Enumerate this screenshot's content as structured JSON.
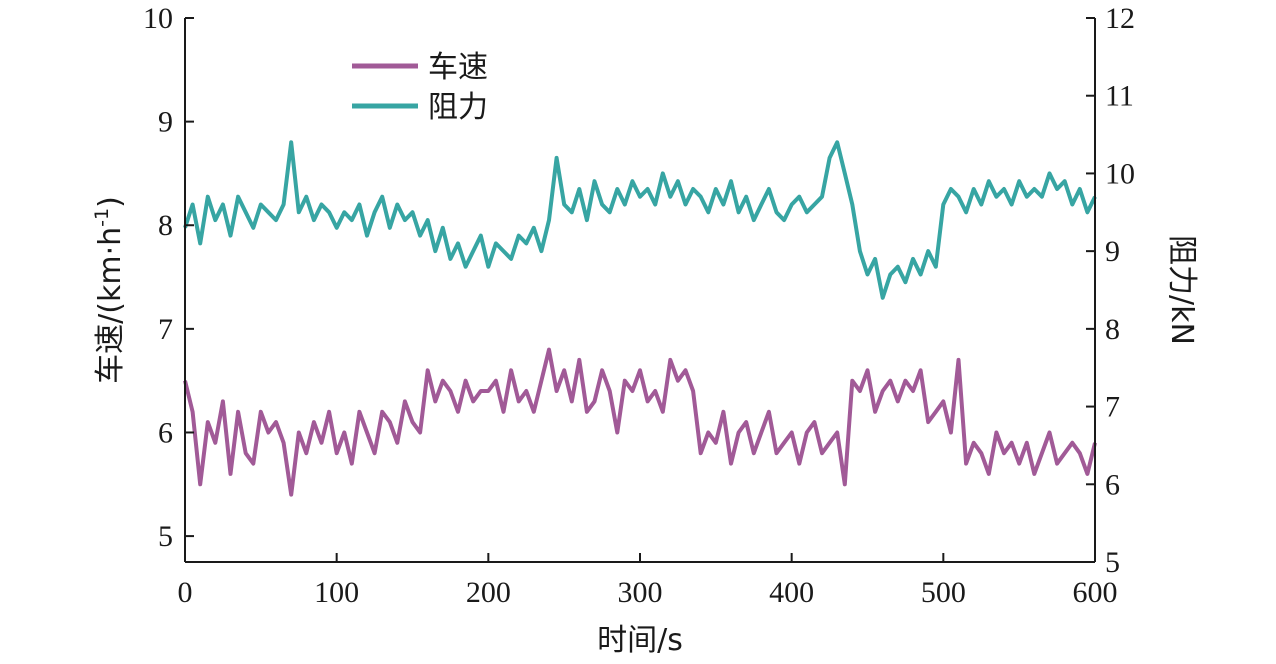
{
  "chart_data": {
    "type": "line",
    "xlabel": "时间/s",
    "ylabel_left": "车速/(km·h",
    "ylabel_left_sup": "-1",
    "ylabel_left_close": ")",
    "ylabel_right": "阻力/kN",
    "xlim": [
      0,
      600
    ],
    "ylim_left": [
      4.75,
      10
    ],
    "ylim_right": [
      5,
      12
    ],
    "x_ticks": [
      0,
      100,
      200,
      300,
      400,
      500,
      600
    ],
    "y_left_ticks": [
      5,
      6,
      7,
      8,
      9,
      10
    ],
    "y_right_ticks": [
      5,
      6,
      7,
      8,
      9,
      10,
      11,
      12
    ],
    "grid": false,
    "legend_position": "top-left",
    "series": [
      {
        "name": "车速",
        "axis": "left",
        "color": "#a15a97",
        "x": [
          0,
          5,
          10,
          15,
          20,
          25,
          30,
          35,
          40,
          45,
          50,
          55,
          60,
          65,
          70,
          75,
          80,
          85,
          90,
          95,
          100,
          105,
          110,
          115,
          120,
          125,
          130,
          135,
          140,
          145,
          150,
          155,
          160,
          165,
          170,
          175,
          180,
          185,
          190,
          195,
          200,
          205,
          210,
          215,
          220,
          225,
          230,
          235,
          240,
          245,
          250,
          255,
          260,
          265,
          270,
          275,
          280,
          285,
          290,
          295,
          300,
          305,
          310,
          315,
          320,
          325,
          330,
          335,
          340,
          345,
          350,
          355,
          360,
          365,
          370,
          375,
          380,
          385,
          390,
          395,
          400,
          405,
          410,
          415,
          420,
          425,
          430,
          435,
          440,
          445,
          450,
          455,
          460,
          465,
          470,
          475,
          480,
          485,
          490,
          495,
          500,
          505,
          510,
          515,
          520,
          525,
          530,
          535,
          540,
          545,
          550,
          555,
          560,
          565,
          570,
          575,
          580,
          585,
          590,
          595,
          600
        ],
        "values": [
          6.5,
          6.2,
          5.5,
          6.1,
          5.9,
          6.3,
          5.6,
          6.2,
          5.8,
          5.7,
          6.2,
          6.0,
          6.1,
          5.9,
          5.4,
          6.0,
          5.8,
          6.1,
          5.9,
          6.2,
          5.8,
          6.0,
          5.7,
          6.2,
          6.0,
          5.8,
          6.2,
          6.1,
          5.9,
          6.3,
          6.1,
          6.0,
          6.6,
          6.3,
          6.5,
          6.4,
          6.2,
          6.5,
          6.3,
          6.4,
          6.4,
          6.5,
          6.2,
          6.6,
          6.3,
          6.4,
          6.2,
          6.5,
          6.8,
          6.4,
          6.6,
          6.3,
          6.7,
          6.2,
          6.3,
          6.6,
          6.4,
          6.0,
          6.5,
          6.4,
          6.6,
          6.3,
          6.4,
          6.2,
          6.7,
          6.5,
          6.6,
          6.4,
          5.8,
          6.0,
          5.9,
          6.2,
          5.7,
          6.0,
          6.1,
          5.8,
          6.0,
          6.2,
          5.8,
          5.9,
          6.0,
          5.7,
          6.0,
          6.1,
          5.8,
          5.9,
          6.0,
          5.5,
          6.5,
          6.4,
          6.6,
          6.2,
          6.4,
          6.5,
          6.3,
          6.5,
          6.4,
          6.6,
          6.1,
          6.2,
          6.3,
          6.0,
          6.7,
          5.7,
          5.9,
          5.8,
          5.6,
          6.0,
          5.8,
          5.9,
          5.7,
          5.9,
          5.6,
          5.8,
          6.0,
          5.7,
          5.8,
          5.9,
          5.8,
          5.6,
          5.9
        ]
      },
      {
        "name": "阻力",
        "axis": "right",
        "color": "#37a5a3",
        "x": [
          0,
          5,
          10,
          15,
          20,
          25,
          30,
          35,
          40,
          45,
          50,
          55,
          60,
          65,
          70,
          75,
          80,
          85,
          90,
          95,
          100,
          105,
          110,
          115,
          120,
          125,
          130,
          135,
          140,
          145,
          150,
          155,
          160,
          165,
          170,
          175,
          180,
          185,
          190,
          195,
          200,
          205,
          210,
          215,
          220,
          225,
          230,
          235,
          240,
          245,
          250,
          255,
          260,
          265,
          270,
          275,
          280,
          285,
          290,
          295,
          300,
          305,
          310,
          315,
          320,
          325,
          330,
          335,
          340,
          345,
          350,
          355,
          360,
          365,
          370,
          375,
          380,
          385,
          390,
          395,
          400,
          405,
          410,
          415,
          420,
          425,
          430,
          435,
          440,
          445,
          450,
          455,
          460,
          465,
          470,
          475,
          480,
          485,
          490,
          495,
          500,
          505,
          510,
          515,
          520,
          525,
          530,
          535,
          540,
          545,
          550,
          555,
          560,
          565,
          570,
          575,
          580,
          585,
          590,
          595,
          600
        ],
        "values": [
          9.3,
          9.6,
          9.1,
          9.7,
          9.4,
          9.6,
          9.2,
          9.7,
          9.5,
          9.3,
          9.6,
          9.5,
          9.4,
          9.6,
          10.4,
          9.5,
          9.7,
          9.4,
          9.6,
          9.5,
          9.3,
          9.5,
          9.4,
          9.6,
          9.2,
          9.5,
          9.7,
          9.3,
          9.6,
          9.4,
          9.5,
          9.2,
          9.4,
          9.0,
          9.3,
          8.9,
          9.1,
          8.8,
          9.0,
          9.2,
          8.8,
          9.1,
          9.0,
          8.9,
          9.2,
          9.1,
          9.3,
          9.0,
          9.4,
          10.2,
          9.6,
          9.5,
          9.8,
          9.4,
          9.9,
          9.6,
          9.5,
          9.8,
          9.6,
          9.9,
          9.7,
          9.8,
          9.6,
          10.0,
          9.7,
          9.9,
          9.6,
          9.8,
          9.7,
          9.5,
          9.8,
          9.6,
          9.9,
          9.5,
          9.7,
          9.4,
          9.6,
          9.8,
          9.5,
          9.4,
          9.6,
          9.7,
          9.5,
          9.6,
          9.7,
          10.2,
          10.4,
          10.0,
          9.6,
          9.0,
          8.7,
          8.9,
          8.4,
          8.7,
          8.8,
          8.6,
          8.9,
          8.7,
          9.0,
          8.8,
          9.6,
          9.8,
          9.7,
          9.5,
          9.8,
          9.6,
          9.9,
          9.7,
          9.8,
          9.6,
          9.9,
          9.7,
          9.8,
          9.7,
          10.0,
          9.8,
          9.9,
          9.6,
          9.8,
          9.5,
          9.7
        ]
      }
    ]
  }
}
